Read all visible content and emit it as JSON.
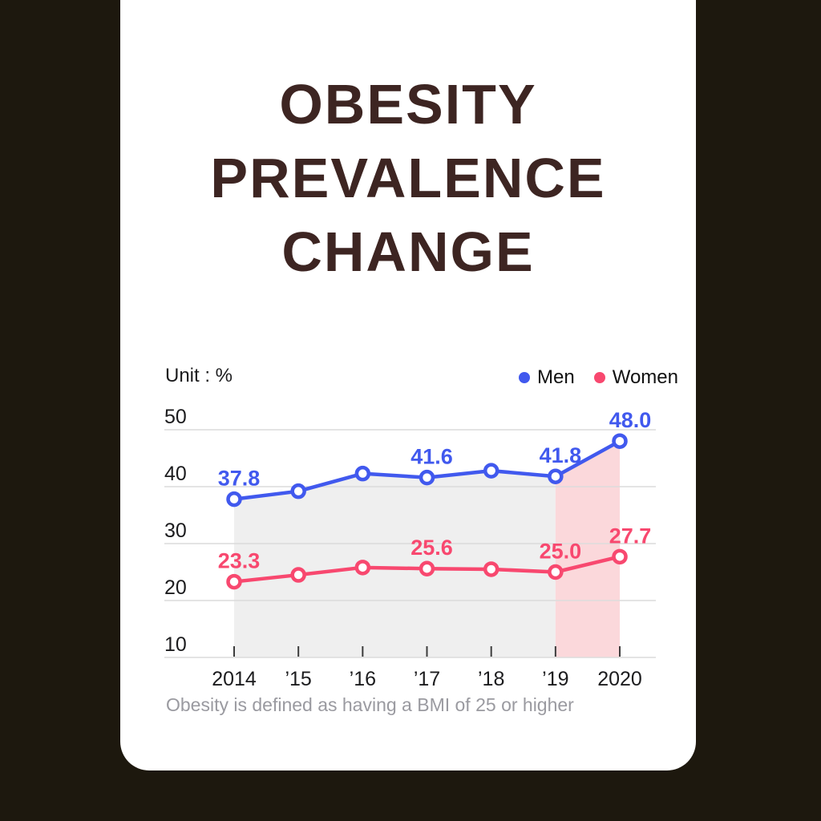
{
  "page": {
    "background_color": "#1D180E",
    "card_color": "#FFFFFF"
  },
  "header": {
    "title": "OBESITY PREVALENCE CHANGE",
    "title_color": "#3D2522"
  },
  "chart": {
    "unit_label": "Unit : %",
    "legend": [
      {
        "label": "Men",
        "color": "#4159EE"
      },
      {
        "label": "Women",
        "color": "#F8486F"
      }
    ],
    "footnote": "Obesity is defined as having a BMI of 25 or higher"
  },
  "chart_data": {
    "type": "line",
    "title": "Obesity Prevalence Change",
    "unit": "%",
    "categories": [
      "2014",
      "’15",
      "’16",
      "’17",
      "’18",
      "’19",
      "2020"
    ],
    "series": [
      {
        "name": "Men",
        "color": "#4159EE",
        "values": [
          37.8,
          39.2,
          42.3,
          41.6,
          42.8,
          41.8,
          48.0
        ],
        "point_labels": {
          "0": "37.8",
          "3": "41.6",
          "5": "41.8",
          "6": "48.0"
        }
      },
      {
        "name": "Women",
        "color": "#F8486F",
        "values": [
          23.3,
          24.5,
          25.8,
          25.6,
          25.5,
          25.0,
          27.7
        ],
        "point_labels": {
          "0": "23.3",
          "3": "25.6",
          "5": "25.0",
          "6": "27.7"
        }
      }
    ],
    "ylim": [
      10,
      50
    ],
    "y_ticks": [
      50,
      40,
      30,
      20,
      10
    ],
    "grid": "horizontal",
    "gridline_color": "#DCDCDC",
    "tick_color": "#3C3C3C",
    "axis_text_color": "#1C1C1E",
    "legend_position": "top-right",
    "area_fill": {
      "under_series": "Men",
      "base_color": "#EFEFEF",
      "base_range": [
        "2014",
        "’19"
      ],
      "highlight_color": "#FBD8DB",
      "highlight_range": [
        "’19",
        "2020"
      ]
    }
  }
}
